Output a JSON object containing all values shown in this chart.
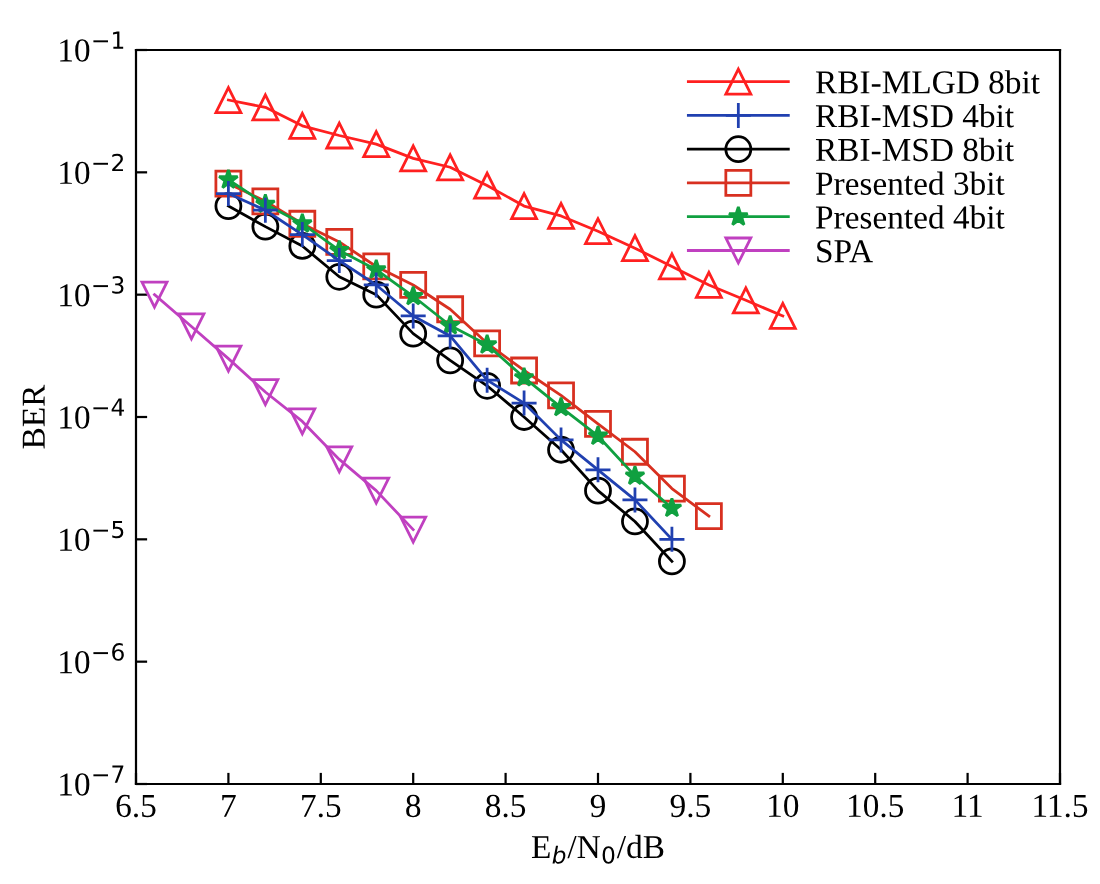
{
  "chart_data": {
    "type": "line",
    "xlabel": "E$_{b}$/N$_{0}$/dB",
    "ylabel": "BER",
    "log": "y",
    "grid": false,
    "legend": "top right",
    "line_style": "solid",
    "xlim": [
      6.5,
      11.5
    ],
    "xticks": [
      6.5,
      7,
      7.5,
      8,
      8.5,
      9,
      9.5,
      10,
      10.5,
      11,
      11.5
    ],
    "ylim": [
      1e-07,
      0.1
    ],
    "yticks": [
      {
        "value": 1e-07,
        "label": "10$^{−7}$"
      },
      {
        "value": 1e-06,
        "label": "10$^{−6}$"
      },
      {
        "value": 1e-05,
        "label": "10$^{−5}$"
      },
      {
        "value": 0.0001,
        "label": "10$^{−4}$"
      },
      {
        "value": 0.001,
        "label": "10$^{−3}$"
      },
      {
        "value": 0.01,
        "label": "10$^{−2}$"
      },
      {
        "value": 0.1,
        "label": "10$^{−1}$"
      }
    ],
    "series": [
      {
        "name": "RBI-MLGD 8bit",
        "color": "#ff2020",
        "marker": "triangle",
        "x": [
          7.0,
          7.2,
          7.4,
          7.6,
          7.8,
          8.0,
          8.2,
          8.4,
          8.6,
          8.8,
          9.0,
          9.2,
          9.4,
          9.6,
          9.8,
          10.0
        ],
        "values": [
          0.039,
          0.034,
          0.024,
          0.02,
          0.017,
          0.013,
          0.011,
          0.0078,
          0.0053,
          0.0044,
          0.0033,
          0.0024,
          0.0017,
          0.0012,
          0.0009,
          0.00067
        ]
      },
      {
        "name": "RBI-MSD 4bit",
        "color": "#2040b0",
        "marker": "plus",
        "x": [
          7.0,
          7.2,
          7.4,
          7.6,
          7.8,
          8.0,
          8.2,
          8.4,
          8.6,
          8.8,
          9.0,
          9.2,
          9.4
        ],
        "values": [
          0.0067,
          0.0049,
          0.0031,
          0.0019,
          0.0012,
          0.00067,
          0.00046,
          0.0002,
          0.00013,
          6.5e-05,
          3.7e-05,
          2.1e-05,
          1e-05
        ]
      },
      {
        "name": "RBI-MSD 8bit",
        "color": "#000000",
        "marker": "circle",
        "x": [
          7.0,
          7.2,
          7.4,
          7.6,
          7.8,
          8.0,
          8.2,
          8.4,
          8.6,
          8.8,
          9.0,
          9.2,
          9.4
        ],
        "values": [
          0.0053,
          0.0036,
          0.0025,
          0.0014,
          0.001,
          0.00048,
          0.00029,
          0.00018,
          0.0001,
          5.4e-05,
          2.5e-05,
          1.4e-05,
          6.6e-06
        ]
      },
      {
        "name": "Presented 3bit",
        "color": "#d83020",
        "marker": "square",
        "x": [
          7.0,
          7.2,
          7.4,
          7.6,
          7.8,
          8.0,
          8.2,
          8.4,
          8.6,
          8.8,
          9.0,
          9.2,
          9.4,
          9.6
        ],
        "values": [
          0.0081,
          0.0058,
          0.0038,
          0.0027,
          0.0017,
          0.0012,
          0.00076,
          0.0004,
          0.00024,
          0.00015,
          8.8e-05,
          5.2e-05,
          2.6e-05,
          1.55e-05
        ]
      },
      {
        "name": "Presented 4bit",
        "color": "#10a040",
        "marker": "star",
        "x": [
          7.0,
          7.2,
          7.4,
          7.6,
          7.8,
          8.0,
          8.2,
          8.4,
          8.6,
          8.8,
          9.0,
          9.2,
          9.4
        ],
        "values": [
          0.0087,
          0.0055,
          0.0038,
          0.0023,
          0.0016,
          0.00097,
          0.00056,
          0.00039,
          0.00021,
          0.00012,
          7e-05,
          3.3e-05,
          1.8e-05
        ]
      },
      {
        "name": "SPA",
        "color": "#c040c0",
        "marker": "triangle_down",
        "x": [
          6.6,
          6.8,
          7.0,
          7.2,
          7.4,
          7.6,
          7.8,
          8.0
        ],
        "values": [
          0.001,
          0.00055,
          0.0003,
          0.00016,
          9.2e-05,
          4.5e-05,
          2.5e-05,
          1.2e-05
        ]
      }
    ]
  }
}
